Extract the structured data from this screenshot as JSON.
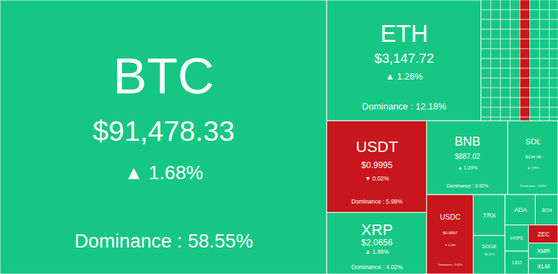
{
  "chart_data": {
    "type": "treemap",
    "tiles": [
      {
        "name": "BTC",
        "price": "$91,478.33",
        "change": "▲ 1.68%",
        "dominance": 58.55,
        "dominance_label": "Dominance : 58.55%",
        "color": "#16c784"
      },
      {
        "name": "ETH",
        "price": "$3,147.72",
        "change": "▲ 1.26%",
        "dominance": 12.18,
        "dominance_label": "Dominance : 12.18%",
        "color": "#16c784"
      },
      {
        "name": "USDT",
        "price": "$0.9995",
        "change": "▼ 0.02%",
        "dominance": 5.99,
        "dominance_label": "Dominance : 5.99%",
        "color": "#c8161d"
      },
      {
        "name": "XRP",
        "price": "$2.0656",
        "change": "▲ 1.88%",
        "dominance": 4.02,
        "dominance_label": "Dominance : 4.02%",
        "color": "#16c784"
      },
      {
        "name": "BNB",
        "price": "$887.02",
        "change": "▲ 1.29%",
        "dominance": 3.92,
        "dominance_label": "Dominance : 3.92%",
        "color": "#16c784"
      },
      {
        "name": "SOL",
        "price": "$134.38",
        "change": "▲ 1.96%",
        "dominance": 2.43,
        "dominance_label": "Dominance : 2.43%",
        "color": "#16c784"
      },
      {
        "name": "USDC",
        "price": "$0.9997",
        "change": "▼ 0.03%",
        "dominance": 2.42,
        "dominance_label": "Dominance : 2.42%",
        "color": "#c8161d"
      },
      {
        "name": "TRX",
        "dominance": 0.85,
        "color": "#16c784"
      },
      {
        "name": "DOGE",
        "price": "$0.1523",
        "dominance": 0.8,
        "color": "#16c784"
      },
      {
        "name": "ADA",
        "dominance": 0.6,
        "color": "#16c784"
      },
      {
        "name": "BCH",
        "dominance": 0.45,
        "color": "#16c784"
      },
      {
        "name": "HYPE",
        "dominance": 0.4,
        "color": "#16c784"
      },
      {
        "name": "LEO",
        "dominance": 0.35,
        "color": "#16c784"
      },
      {
        "name": "ZEC",
        "dominance": 0.35,
        "color": "#c8161d"
      },
      {
        "name": "XMR",
        "dominance": 0.3,
        "color": "#16c784"
      },
      {
        "name": "XLM",
        "dominance": 0.3,
        "color": "#16c784"
      }
    ]
  }
}
